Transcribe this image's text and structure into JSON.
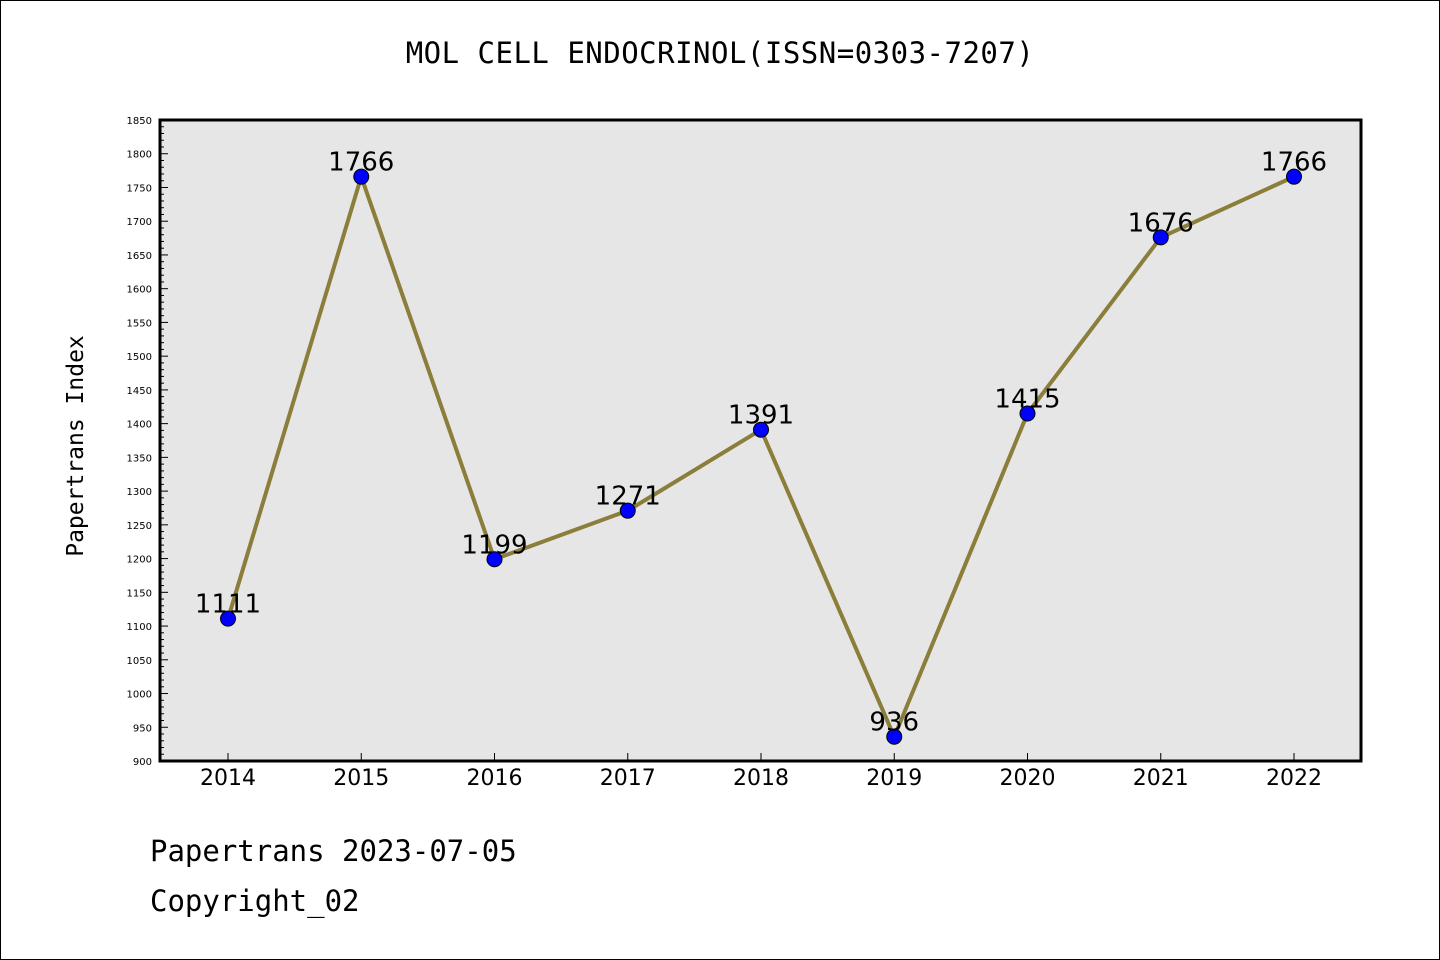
{
  "chart_data": {
    "type": "line",
    "title": "MOL CELL ENDOCRINOL(ISSN=0303-7207)",
    "xlabel": "",
    "ylabel": "Papertrans Index",
    "categories": [
      "2014",
      "2015",
      "2016",
      "2017",
      "2018",
      "2019",
      "2020",
      "2021",
      "2022"
    ],
    "values": [
      1111,
      1766,
      1199,
      1271,
      1391,
      936,
      1415,
      1676,
      1766
    ],
    "data_labels": [
      "1111",
      "1766",
      "1199",
      "1271",
      "1391",
      "936",
      "1415",
      "1676",
      "1766"
    ],
    "ylim": [
      900,
      1850
    ],
    "y_ticks": [
      900,
      950,
      1000,
      1050,
      1100,
      1150,
      1200,
      1250,
      1300,
      1350,
      1400,
      1450,
      1500,
      1550,
      1600,
      1650,
      1700,
      1750,
      1800,
      1850
    ],
    "grid": false,
    "legend": "none",
    "colors": {
      "line": "#8B7D3A",
      "marker": "#0000FF",
      "plot_background": "#E6E6E6"
    }
  },
  "footer": {
    "date_text": "Papertrans 2023-07-05",
    "copyright_text": "Copyright_02"
  }
}
